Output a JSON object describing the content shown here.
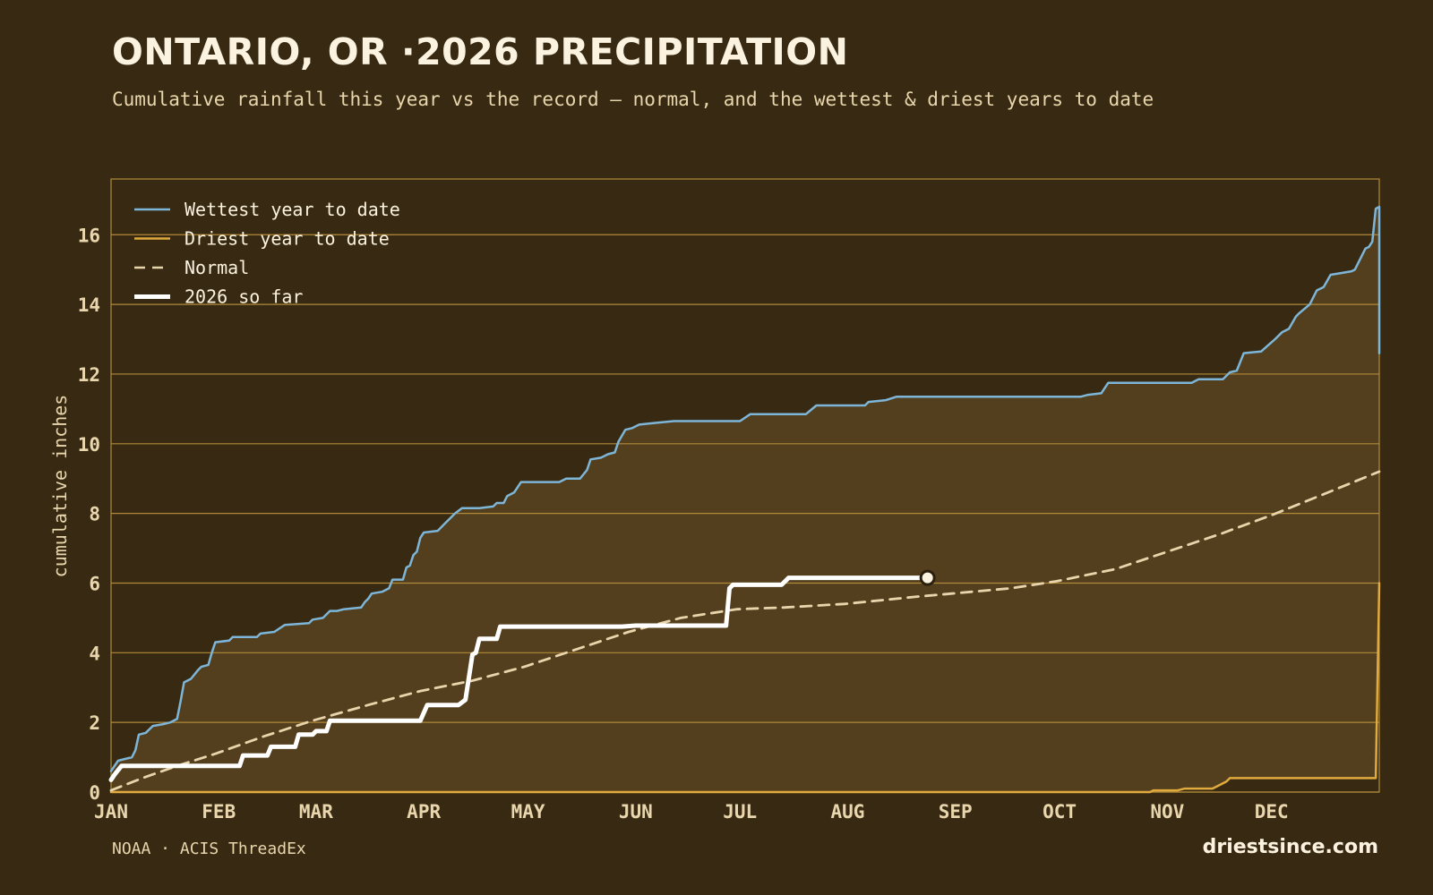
{
  "header": {
    "title": "ONTARIO, OR ·2026 PRECIPITATION",
    "subtitle": "Cumulative rainfall this year vs the record — normal, and the wettest & driest years to date"
  },
  "footer": {
    "source": "NOAA · ACIS ThreadEx",
    "brand": "driestsince.com"
  },
  "colors": {
    "background": "#382a12",
    "band_fill": "#533f1e",
    "grid": "#b08a3a",
    "wettest": "#7db6d8",
    "driest": "#e0aa3e",
    "normal": "#e8d5ab",
    "current": "#ffffff"
  },
  "chart_data": {
    "type": "line",
    "title": "ONTARIO, OR ·2026 PRECIPITATION",
    "subtitle": "Cumulative rainfall this year vs the record — normal, and the wettest & driest years to date",
    "xlabel": "",
    "ylabel": "cumulative inches",
    "x_unit": "day of year",
    "xlim": [
      1,
      366
    ],
    "ylim": [
      0,
      17.6
    ],
    "yticks": [
      0,
      2,
      4,
      6,
      8,
      10,
      12,
      14,
      16
    ],
    "month_ticks": [
      {
        "label": "JAN",
        "day": 1
      },
      {
        "label": "FEB",
        "day": 32
      },
      {
        "label": "MAR",
        "day": 60
      },
      {
        "label": "APR",
        "day": 91
      },
      {
        "label": "MAY",
        "day": 121
      },
      {
        "label": "JUN",
        "day": 152
      },
      {
        "label": "JUL",
        "day": 182
      },
      {
        "label": "AUG",
        "day": 213
      },
      {
        "label": "SEP",
        "day": 244
      },
      {
        "label": "OCT",
        "day": 274
      },
      {
        "label": "NOV",
        "day": 305
      },
      {
        "label": "DEC",
        "day": 335
      }
    ],
    "grid": "horizontal",
    "legend_position": "top-left",
    "series": [
      {
        "name": "Wettest year to date",
        "style": "solid",
        "points": [
          [
            1,
            0.6
          ],
          [
            3,
            0.9
          ],
          [
            5,
            0.95
          ],
          [
            7,
            1.0
          ],
          [
            8,
            1.2
          ],
          [
            9,
            1.65
          ],
          [
            11,
            1.7
          ],
          [
            13,
            1.9
          ],
          [
            16,
            1.95
          ],
          [
            18,
            2.0
          ],
          [
            20,
            2.1
          ],
          [
            21,
            2.6
          ],
          [
            22,
            3.15
          ],
          [
            24,
            3.25
          ],
          [
            26,
            3.5
          ],
          [
            27,
            3.6
          ],
          [
            29,
            3.65
          ],
          [
            30,
            4.0
          ],
          [
            31,
            4.3
          ],
          [
            35,
            4.35
          ],
          [
            36,
            4.45
          ],
          [
            43,
            4.45
          ],
          [
            44,
            4.55
          ],
          [
            48,
            4.6
          ],
          [
            51,
            4.8
          ],
          [
            58,
            4.85
          ],
          [
            59,
            4.95
          ],
          [
            62,
            5.0
          ],
          [
            64,
            5.2
          ],
          [
            66,
            5.2
          ],
          [
            68,
            5.25
          ],
          [
            73,
            5.3
          ],
          [
            74,
            5.45
          ],
          [
            75,
            5.55
          ],
          [
            76,
            5.7
          ],
          [
            79,
            5.75
          ],
          [
            81,
            5.85
          ],
          [
            82,
            6.1
          ],
          [
            85,
            6.1
          ],
          [
            86,
            6.45
          ],
          [
            87,
            6.5
          ],
          [
            88,
            6.8
          ],
          [
            89,
            6.9
          ],
          [
            90,
            7.3
          ],
          [
            91,
            7.45
          ],
          [
            95,
            7.5
          ],
          [
            97,
            7.7
          ],
          [
            99,
            7.9
          ],
          [
            100,
            8.0
          ],
          [
            102,
            8.15
          ],
          [
            107,
            8.15
          ],
          [
            111,
            8.2
          ],
          [
            112,
            8.3
          ],
          [
            114,
            8.3
          ],
          [
            115,
            8.5
          ],
          [
            117,
            8.6
          ],
          [
            119,
            8.9
          ],
          [
            130,
            8.9
          ],
          [
            132,
            9.0
          ],
          [
            136,
            9.0
          ],
          [
            138,
            9.25
          ],
          [
            139,
            9.55
          ],
          [
            142,
            9.6
          ],
          [
            144,
            9.7
          ],
          [
            146,
            9.75
          ],
          [
            147,
            10.05
          ],
          [
            149,
            10.4
          ],
          [
            151,
            10.45
          ],
          [
            153,
            10.55
          ],
          [
            158,
            10.6
          ],
          [
            163,
            10.65
          ],
          [
            182,
            10.65
          ],
          [
            185,
            10.85
          ],
          [
            201,
            10.85
          ],
          [
            204,
            11.1
          ],
          [
            218,
            11.1
          ],
          [
            219,
            11.2
          ],
          [
            224,
            11.25
          ],
          [
            227,
            11.35
          ],
          [
            280,
            11.35
          ],
          [
            282,
            11.4
          ],
          [
            286,
            11.45
          ],
          [
            288,
            11.75
          ],
          [
            312,
            11.75
          ],
          [
            314,
            11.85
          ],
          [
            321,
            11.85
          ],
          [
            323,
            12.05
          ],
          [
            325,
            12.1
          ],
          [
            327,
            12.6
          ],
          [
            332,
            12.65
          ],
          [
            336,
            13.0
          ],
          [
            338,
            13.2
          ],
          [
            340,
            13.3
          ],
          [
            342,
            13.65
          ],
          [
            343,
            13.75
          ],
          [
            346,
            14.0
          ],
          [
            348,
            14.4
          ],
          [
            350,
            14.5
          ],
          [
            352,
            14.85
          ],
          [
            355,
            14.9
          ],
          [
            358,
            14.95
          ],
          [
            359,
            15.0
          ],
          [
            362,
            15.6
          ],
          [
            363,
            15.65
          ],
          [
            364,
            15.8
          ],
          [
            365,
            16.75
          ],
          [
            366,
            16.8
          ],
          [
            366,
            12.6
          ]
        ]
      },
      {
        "name": "Driest year to date",
        "style": "solid",
        "points": [
          [
            1,
            0.0
          ],
          [
            300,
            0.0
          ],
          [
            301,
            0.05
          ],
          [
            308,
            0.05
          ],
          [
            310,
            0.1
          ],
          [
            318,
            0.1
          ],
          [
            320,
            0.2
          ],
          [
            322,
            0.3
          ],
          [
            323,
            0.4
          ],
          [
            365,
            0.4
          ],
          [
            366,
            6.0
          ]
        ]
      },
      {
        "name": "Normal",
        "style": "dashed",
        "points": [
          [
            1,
            0.05
          ],
          [
            10,
            0.4
          ],
          [
            20,
            0.75
          ],
          [
            31,
            1.1
          ],
          [
            45,
            1.6
          ],
          [
            59,
            2.05
          ],
          [
            75,
            2.5
          ],
          [
            90,
            2.9
          ],
          [
            105,
            3.2
          ],
          [
            120,
            3.6
          ],
          [
            135,
            4.1
          ],
          [
            150,
            4.6
          ],
          [
            165,
            5.0
          ],
          [
            181,
            5.25
          ],
          [
            195,
            5.3
          ],
          [
            212,
            5.4
          ],
          [
            232,
            5.6
          ],
          [
            243,
            5.7
          ],
          [
            260,
            5.85
          ],
          [
            273,
            6.05
          ],
          [
            290,
            6.4
          ],
          [
            305,
            6.9
          ],
          [
            320,
            7.4
          ],
          [
            335,
            7.95
          ],
          [
            350,
            8.55
          ],
          [
            366,
            9.2
          ]
        ]
      },
      {
        "name": "2026 so far",
        "style": "bold",
        "points": [
          [
            1,
            0.35
          ],
          [
            2,
            0.5
          ],
          [
            4,
            0.75
          ],
          [
            38,
            0.75
          ],
          [
            39,
            1.05
          ],
          [
            46,
            1.05
          ],
          [
            47,
            1.3
          ],
          [
            54,
            1.3
          ],
          [
            55,
            1.65
          ],
          [
            59,
            1.65
          ],
          [
            60,
            1.75
          ],
          [
            63,
            1.75
          ],
          [
            64,
            2.05
          ],
          [
            90,
            2.05
          ],
          [
            92,
            2.5
          ],
          [
            101,
            2.5
          ],
          [
            103,
            2.65
          ],
          [
            105,
            3.95
          ],
          [
            106,
            4.0
          ],
          [
            107,
            4.4
          ],
          [
            112,
            4.4
          ],
          [
            113,
            4.75
          ],
          [
            148,
            4.75
          ],
          [
            152,
            4.78
          ],
          [
            178,
            4.78
          ],
          [
            179,
            5.85
          ],
          [
            180,
            5.95
          ],
          [
            194,
            5.95
          ],
          [
            196,
            6.15
          ],
          [
            224,
            6.15
          ],
          [
            227,
            6.15
          ],
          [
            236,
            6.15
          ]
        ],
        "end_marker": [
          236,
          6.15
        ]
      }
    ]
  }
}
